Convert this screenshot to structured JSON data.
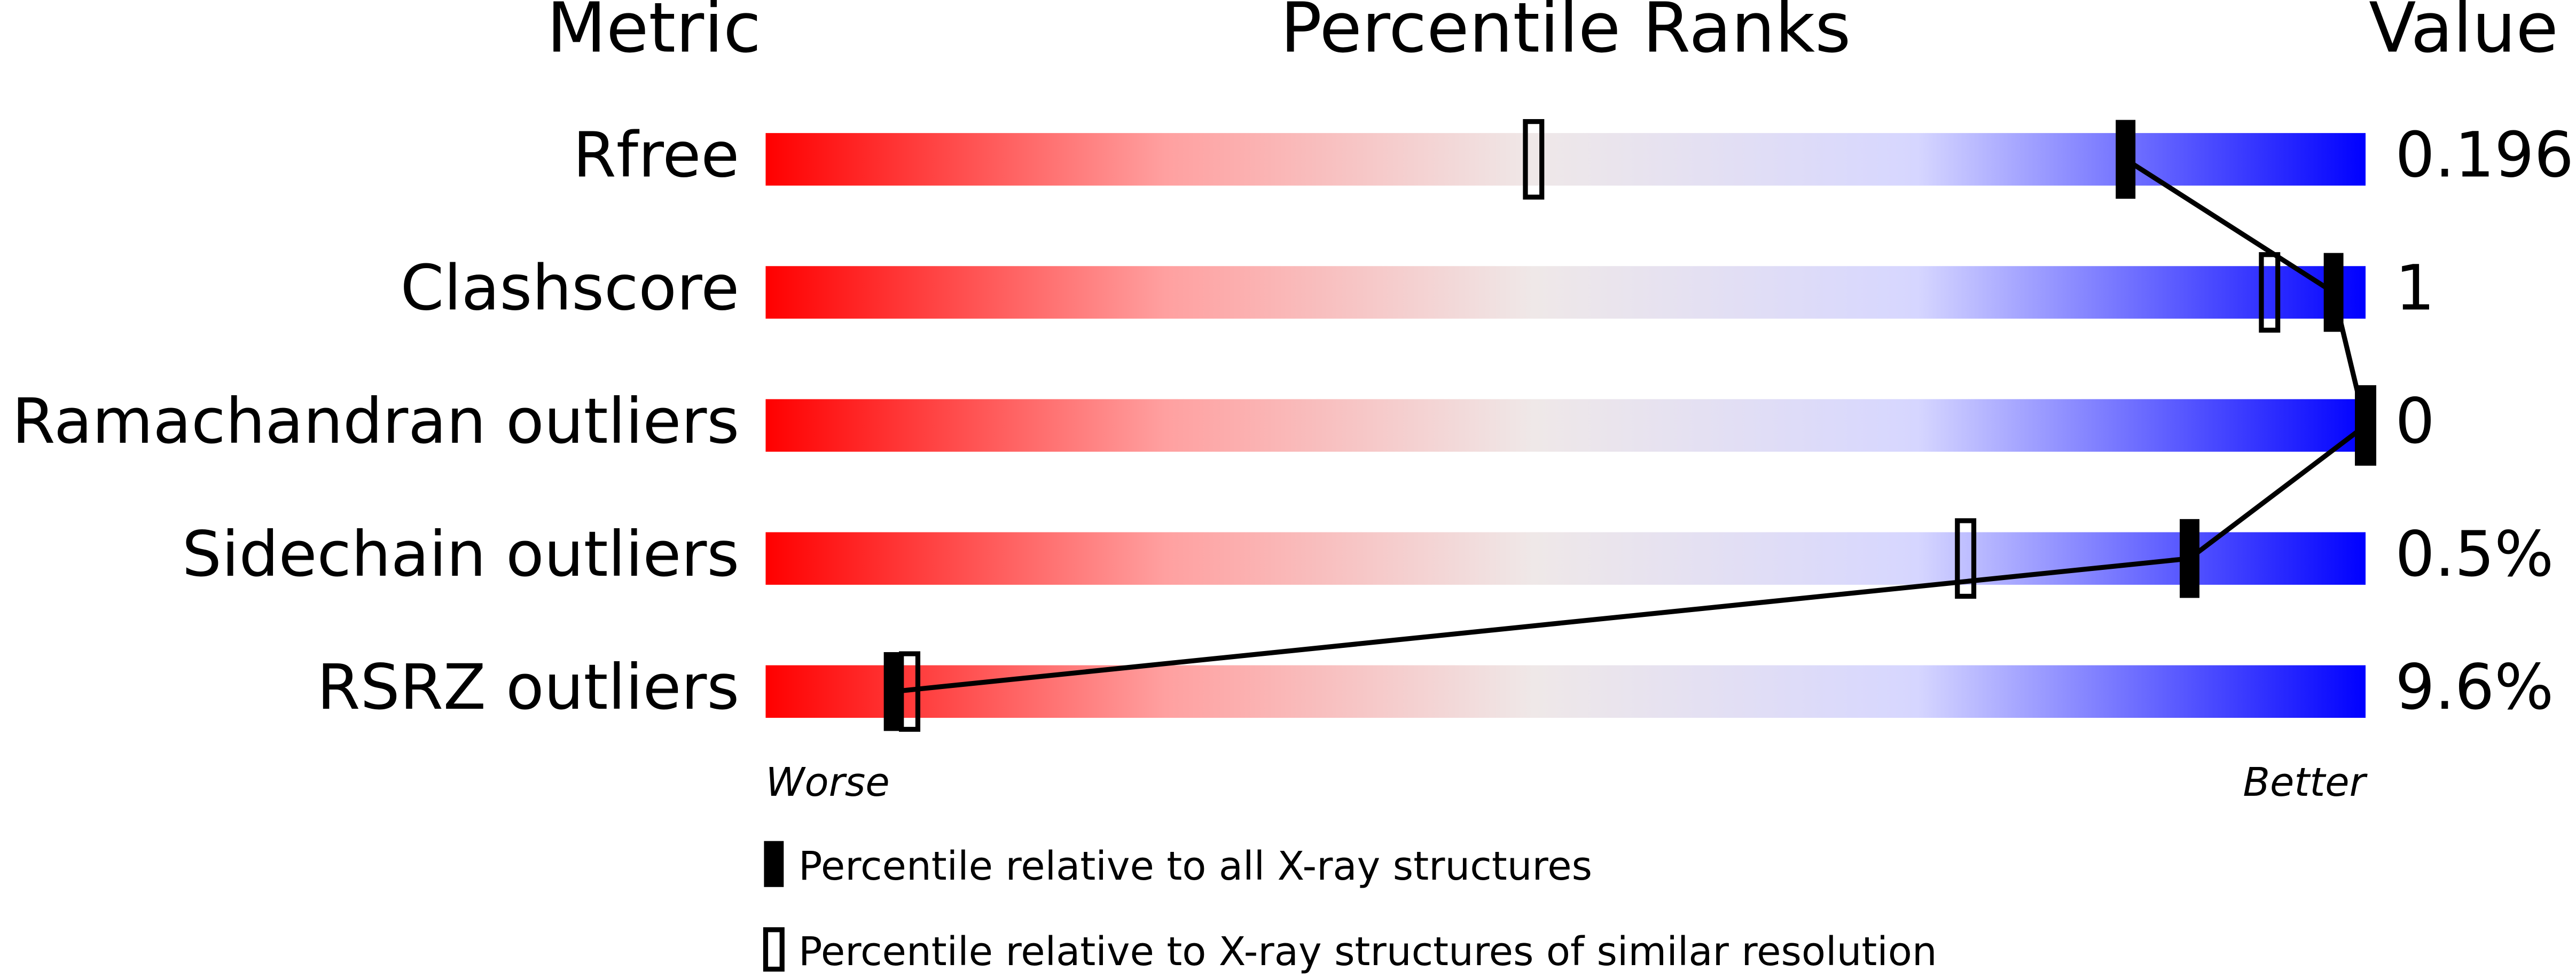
{
  "chart_data": {
    "type": "percentile-slider",
    "headers": {
      "metric": "Metric",
      "ranks": "Percentile Ranks",
      "value": "Value"
    },
    "metrics": [
      "Rfree",
      "Clashscore",
      "Ramachandran outliers",
      "Sidechain outliers",
      "RSRZ outliers"
    ],
    "metric_values": [
      "0.196",
      "1",
      "0",
      "0.5%",
      "9.6%"
    ],
    "series": [
      {
        "name": "Percentile relative to all X-ray structures",
        "color": "#000000",
        "values": [
          85,
          98,
          100,
          89,
          8
        ]
      },
      {
        "name": "Percentile relative to X-ray structures of similar resolution",
        "color": "#000000",
        "values": [
          48,
          94,
          100,
          75,
          9
        ]
      }
    ],
    "xlim": [
      0,
      100
    ],
    "worse": "Worse",
    "better": "Better"
  }
}
